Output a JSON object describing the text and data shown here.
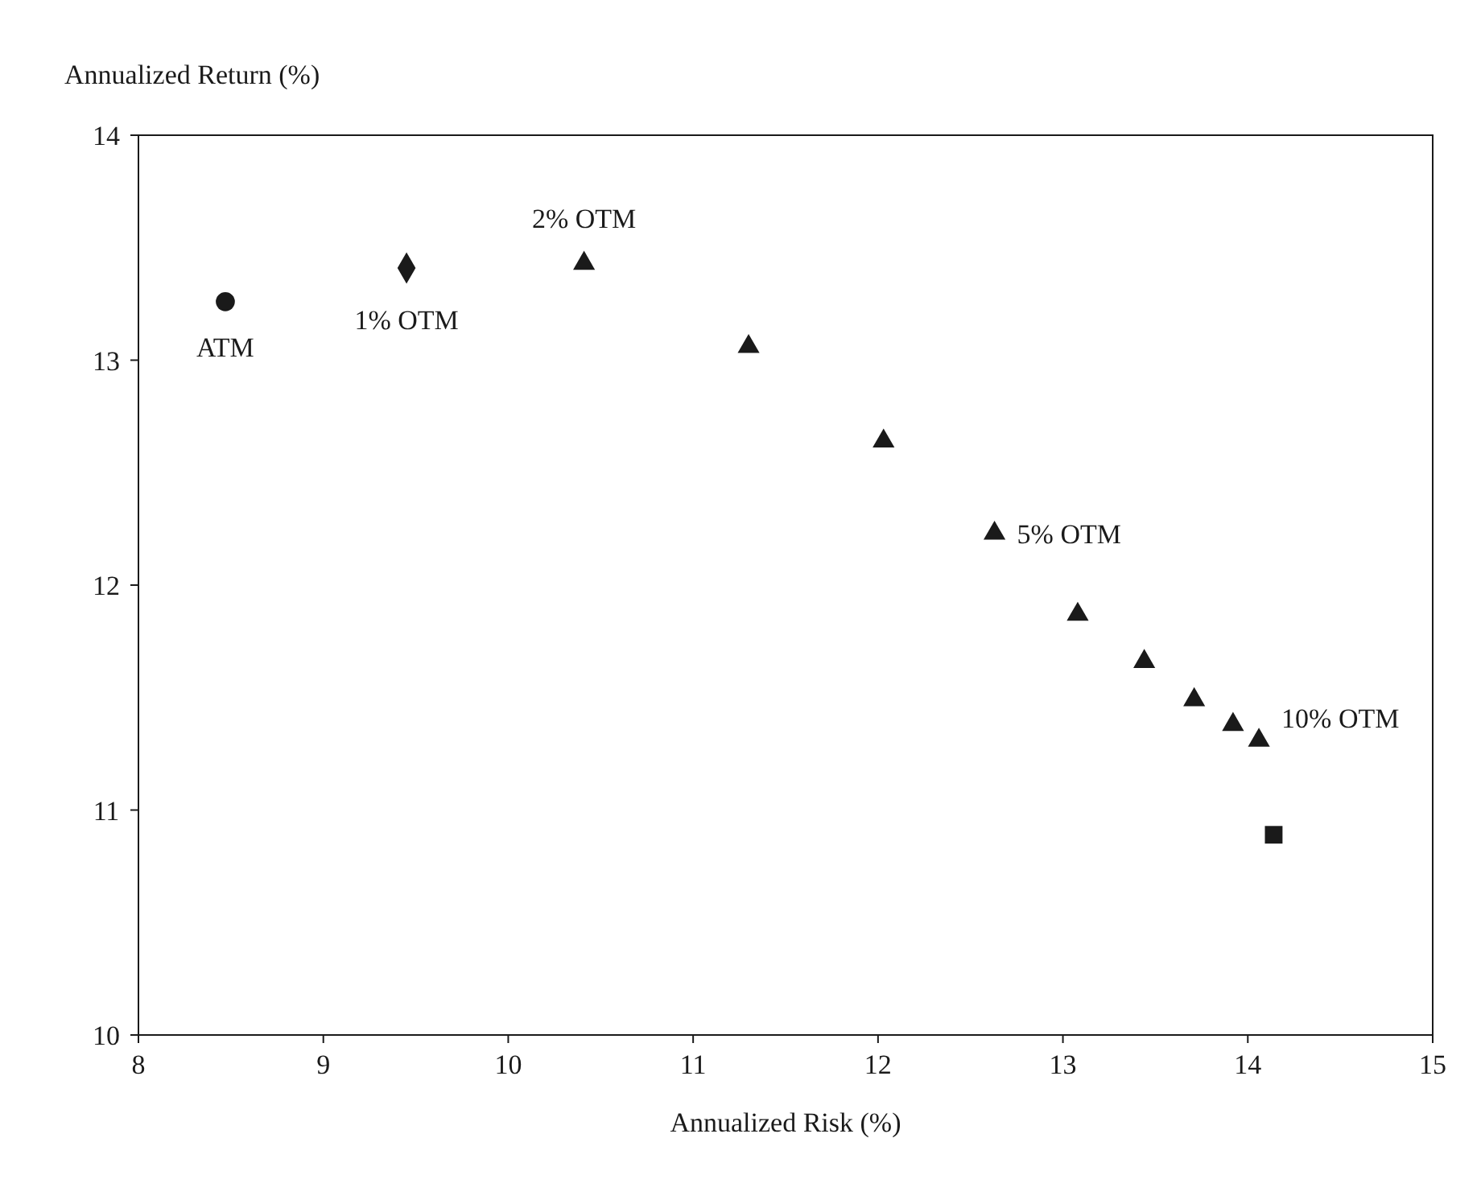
{
  "chart_data": {
    "type": "scatter",
    "xlabel": "Annualized Risk (%)",
    "ylabel": "Annualized Return (%)",
    "xlim": [
      8,
      15
    ],
    "xticks": [
      8,
      9,
      10,
      11,
      12,
      13,
      14,
      15
    ],
    "ylim": [
      10,
      14
    ],
    "yticks": [
      10,
      11,
      12,
      13,
      14
    ],
    "grid": false,
    "series": [
      {
        "color": "#1a1a1a",
        "marker": "circle",
        "x": [
          8.47
        ],
        "values": [
          13.26
        ]
      },
      {
        "color": "#1a1a1a",
        "marker": "diamond",
        "x": [
          9.45
        ],
        "values": [
          13.41
        ]
      },
      {
        "color": "#1a1a1a",
        "marker": "triangle",
        "x": [
          10.41,
          11.3,
          12.03,
          12.63,
          13.08,
          13.44,
          13.71,
          13.92,
          14.06
        ],
        "values": [
          13.43,
          13.06,
          12.64,
          12.23,
          11.87,
          11.66,
          11.49,
          11.38,
          11.31
        ]
      },
      {
        "color": "#1a1a1a",
        "marker": "square",
        "x": [
          14.14
        ],
        "values": [
          10.89
        ]
      }
    ],
    "annotations": [
      {
        "text": "ATM",
        "x": 8.47,
        "y": 13.26
      },
      {
        "text": "1% OTM",
        "x": 9.45,
        "y": 13.41
      },
      {
        "text": "2% OTM",
        "x": 10.41,
        "y": 13.43
      },
      {
        "text": "5% OTM",
        "x": 12.63,
        "y": 12.23
      },
      {
        "text": "10% OTM",
        "x": 14.06,
        "y": 11.31
      }
    ]
  }
}
